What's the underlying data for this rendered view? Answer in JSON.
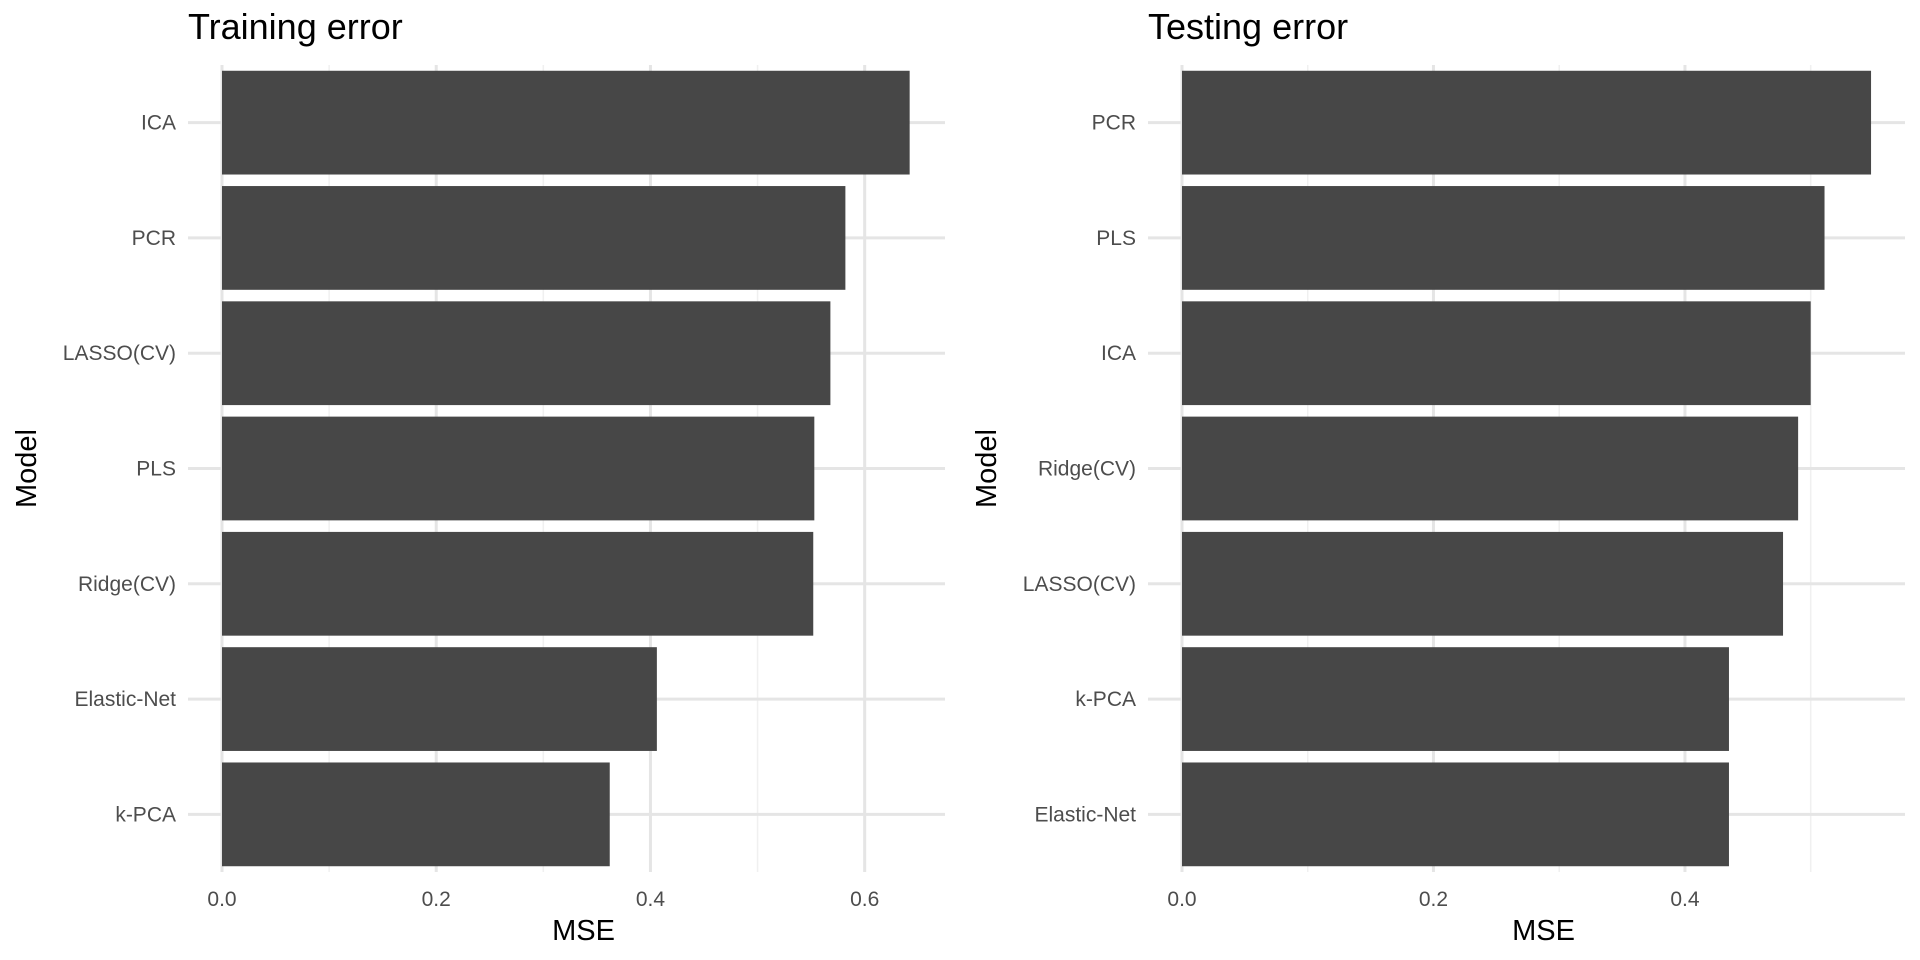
{
  "chart_data": [
    {
      "type": "bar",
      "orientation": "horizontal",
      "title": "Training error",
      "xlabel": "MSE",
      "ylabel": "Model",
      "xlim": [
        0,
        0.675
      ],
      "xticks": [
        0.0,
        0.2,
        0.4,
        0.6
      ],
      "xtick_labels": [
        "0.0",
        "0.2",
        "0.4",
        "0.6"
      ],
      "grid": true,
      "categories": [
        "ICA",
        "PCR",
        "LASSO(CV)",
        "PLS",
        "Ridge(CV)",
        "Elastic-Net",
        "k-PCA"
      ],
      "values": [
        0.642,
        0.582,
        0.568,
        0.553,
        0.552,
        0.406,
        0.362
      ],
      "bar_color": "#474747"
    },
    {
      "type": "bar",
      "orientation": "horizontal",
      "title": "Testing error",
      "xlabel": "MSE",
      "ylabel": "Model",
      "xlim": [
        0,
        0.575
      ],
      "xticks": [
        0.0,
        0.2,
        0.4
      ],
      "xtick_labels": [
        "0.0",
        "0.2",
        "0.4"
      ],
      "grid": true,
      "categories": [
        "PCR",
        "PLS",
        "ICA",
        "Ridge(CV)",
        "LASSO(CV)",
        "k-PCA",
        "Elastic-Net"
      ],
      "values": [
        0.548,
        0.511,
        0.5,
        0.49,
        0.478,
        0.435,
        0.435
      ],
      "bar_color": "#474747"
    }
  ]
}
